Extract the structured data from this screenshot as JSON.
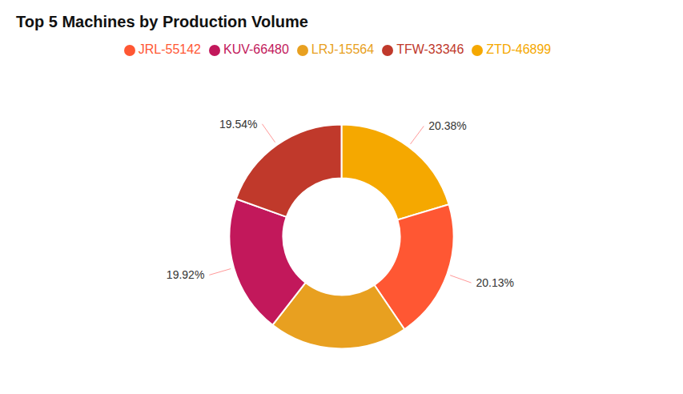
{
  "chart_data": {
    "type": "pie",
    "title": "Top 5 Machines by Production Volume",
    "categories": [
      "ZTD-46899",
      "JRL-55142",
      "LRJ-15564",
      "KUV-66480",
      "TFW-33346"
    ],
    "values": [
      20.38,
      20.13,
      20.03,
      19.92,
      19.54
    ],
    "value_labels": [
      "20.38%",
      "20.13%",
      null,
      "19.92%",
      "19.54%"
    ],
    "colors": [
      "#F5A800",
      "#FF5733",
      "#E8A020",
      "#C2185B",
      "#C0392B"
    ],
    "data_labels": true,
    "legend": "top"
  }
}
